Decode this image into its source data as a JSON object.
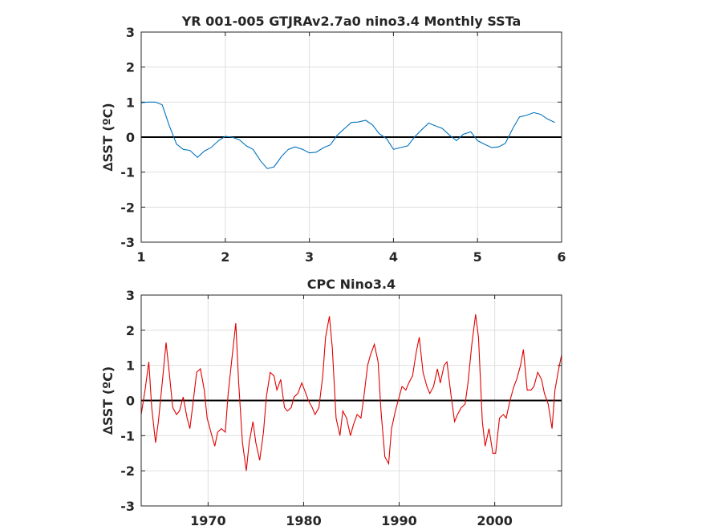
{
  "chart_data": [
    {
      "type": "line",
      "title": "YR 001-005 GTJRAv2.7a0 nino3.4 Monthly SSTa",
      "ylabel": "∆SST (ºC)",
      "xlabel": "",
      "xlim": [
        1,
        6
      ],
      "ylim": [
        -3,
        3
      ],
      "xticks": [
        1,
        2,
        3,
        4,
        5,
        6
      ],
      "yticks": [
        -3,
        -2,
        -1,
        0,
        1,
        2,
        3
      ],
      "grid": true,
      "reference_line": 0,
      "colors": {
        "series": "#0072bd",
        "reference": "#000000"
      },
      "series": [
        {
          "x": [
            1.0,
            1.08,
            1.17,
            1.25,
            1.33,
            1.42,
            1.5,
            1.58,
            1.67,
            1.75,
            1.83,
            1.92,
            2.0,
            2.08,
            2.17,
            2.25,
            2.33,
            2.42,
            2.5,
            2.58,
            2.67,
            2.75,
            2.83,
            2.92,
            3.0,
            3.08,
            3.17,
            3.25,
            3.33,
            3.42,
            3.5,
            3.58,
            3.67,
            3.75,
            3.83,
            3.92,
            4.0,
            4.08,
            4.17,
            4.25,
            4.33,
            4.42,
            4.5,
            4.58,
            4.67,
            4.75,
            4.83,
            4.92,
            5.0,
            5.08,
            5.17,
            5.25,
            5.33,
            5.42,
            5.5,
            5.58,
            5.67,
            5.75,
            5.83,
            5.92
          ],
          "values": [
            0.98,
            1.0,
            1.0,
            0.92,
            0.35,
            -0.2,
            -0.35,
            -0.38,
            -0.58,
            -0.4,
            -0.3,
            -0.1,
            0.02,
            0.0,
            -0.08,
            -0.25,
            -0.35,
            -0.68,
            -0.9,
            -0.85,
            -0.55,
            -0.35,
            -0.28,
            -0.35,
            -0.45,
            -0.43,
            -0.3,
            -0.22,
            0.05,
            0.25,
            0.42,
            0.43,
            0.48,
            0.35,
            0.1,
            -0.05,
            -0.35,
            -0.3,
            -0.25,
            0.0,
            0.2,
            0.4,
            0.32,
            0.25,
            0.05,
            -0.1,
            0.08,
            0.15,
            -0.1,
            -0.2,
            -0.3,
            -0.28,
            -0.18,
            0.25,
            0.58,
            0.62,
            0.7,
            0.65,
            0.52,
            0.42
          ]
        }
      ]
    },
    {
      "type": "line",
      "title": "CPC Nino3.4",
      "ylabel": "∆SST (ºC)",
      "xlabel": "",
      "xlim": [
        1963,
        2007
      ],
      "ylim": [
        -3,
        3
      ],
      "xticks": [
        1970,
        1980,
        1990,
        2000
      ],
      "yticks": [
        -3,
        -2,
        -1,
        0,
        1,
        2,
        3
      ],
      "grid": true,
      "reference_line": 0,
      "colors": {
        "series": "#e00000",
        "reference": "#000000"
      },
      "series": [
        {
          "x": [
            1963.0,
            1963.4,
            1963.8,
            1964.1,
            1964.5,
            1964.8,
            1965.2,
            1965.6,
            1965.9,
            1966.3,
            1966.7,
            1967.0,
            1967.4,
            1967.8,
            1968.1,
            1968.5,
            1968.8,
            1969.2,
            1969.6,
            1969.9,
            1970.3,
            1970.7,
            1971.0,
            1971.4,
            1971.8,
            1972.1,
            1972.5,
            1972.9,
            1973.2,
            1973.6,
            1974.0,
            1974.3,
            1974.7,
            1975.0,
            1975.4,
            1975.8,
            1976.1,
            1976.5,
            1976.9,
            1977.2,
            1977.6,
            1978.0,
            1978.3,
            1978.7,
            1979.0,
            1979.4,
            1979.8,
            1980.1,
            1980.5,
            1980.9,
            1981.2,
            1981.6,
            1982.0,
            1982.3,
            1982.7,
            1983.0,
            1983.4,
            1983.8,
            1984.1,
            1984.5,
            1984.9,
            1985.2,
            1985.6,
            1986.0,
            1986.3,
            1986.7,
            1987.0,
            1987.4,
            1987.8,
            1988.1,
            1988.5,
            1988.9,
            1989.2,
            1989.6,
            1990.0,
            1990.3,
            1990.7,
            1991.0,
            1991.4,
            1991.8,
            1992.1,
            1992.5,
            1992.9,
            1993.2,
            1993.6,
            1994.0,
            1994.3,
            1994.7,
            1995.0,
            1995.4,
            1995.8,
            1996.1,
            1996.5,
            1996.9,
            1997.2,
            1997.6,
            1998.0,
            1998.3,
            1998.7,
            1999.0,
            1999.4,
            1999.8,
            2000.1,
            2000.5,
            2000.9,
            2001.2,
            2001.6,
            2002.0,
            2002.3,
            2002.7,
            2003.0,
            2003.4,
            2003.8,
            2004.1,
            2004.5,
            2004.9,
            2005.2,
            2005.6,
            2006.0,
            2006.3,
            2006.7,
            2007.0
          ],
          "values": [
            -0.4,
            0.3,
            1.1,
            -0.2,
            -1.2,
            -0.6,
            0.5,
            1.65,
            0.9,
            -0.2,
            -0.4,
            -0.3,
            0.1,
            -0.5,
            -0.8,
            0.1,
            0.8,
            0.9,
            0.3,
            -0.5,
            -0.9,
            -1.3,
            -0.9,
            -0.8,
            -0.9,
            0.2,
            1.2,
            2.2,
            0.5,
            -1.2,
            -2.0,
            -1.2,
            -0.6,
            -1.2,
            -1.7,
            -0.9,
            0.1,
            0.8,
            0.7,
            0.3,
            0.6,
            -0.2,
            -0.3,
            -0.2,
            0.1,
            0.2,
            0.5,
            0.3,
            0.0,
            -0.2,
            -0.4,
            -0.2,
            0.7,
            1.8,
            2.4,
            1.5,
            -0.5,
            -1.0,
            -0.3,
            -0.5,
            -1.0,
            -0.7,
            -0.4,
            -0.5,
            0.1,
            1.0,
            1.3,
            1.6,
            1.1,
            -0.3,
            -1.6,
            -1.8,
            -0.8,
            -0.3,
            0.1,
            0.4,
            0.3,
            0.5,
            0.7,
            1.4,
            1.8,
            0.8,
            0.4,
            0.2,
            0.4,
            0.9,
            0.5,
            1.0,
            1.1,
            0.2,
            -0.6,
            -0.4,
            -0.2,
            -0.1,
            0.5,
            1.6,
            2.45,
            1.8,
            -0.6,
            -1.3,
            -0.8,
            -1.5,
            -1.5,
            -0.5,
            -0.4,
            -0.5,
            0.0,
            0.4,
            0.6,
            1.0,
            1.45,
            0.3,
            0.3,
            0.4,
            0.8,
            0.6,
            0.2,
            -0.1,
            -0.8,
            0.3,
            0.9,
            1.3
          ]
        }
      ]
    }
  ]
}
